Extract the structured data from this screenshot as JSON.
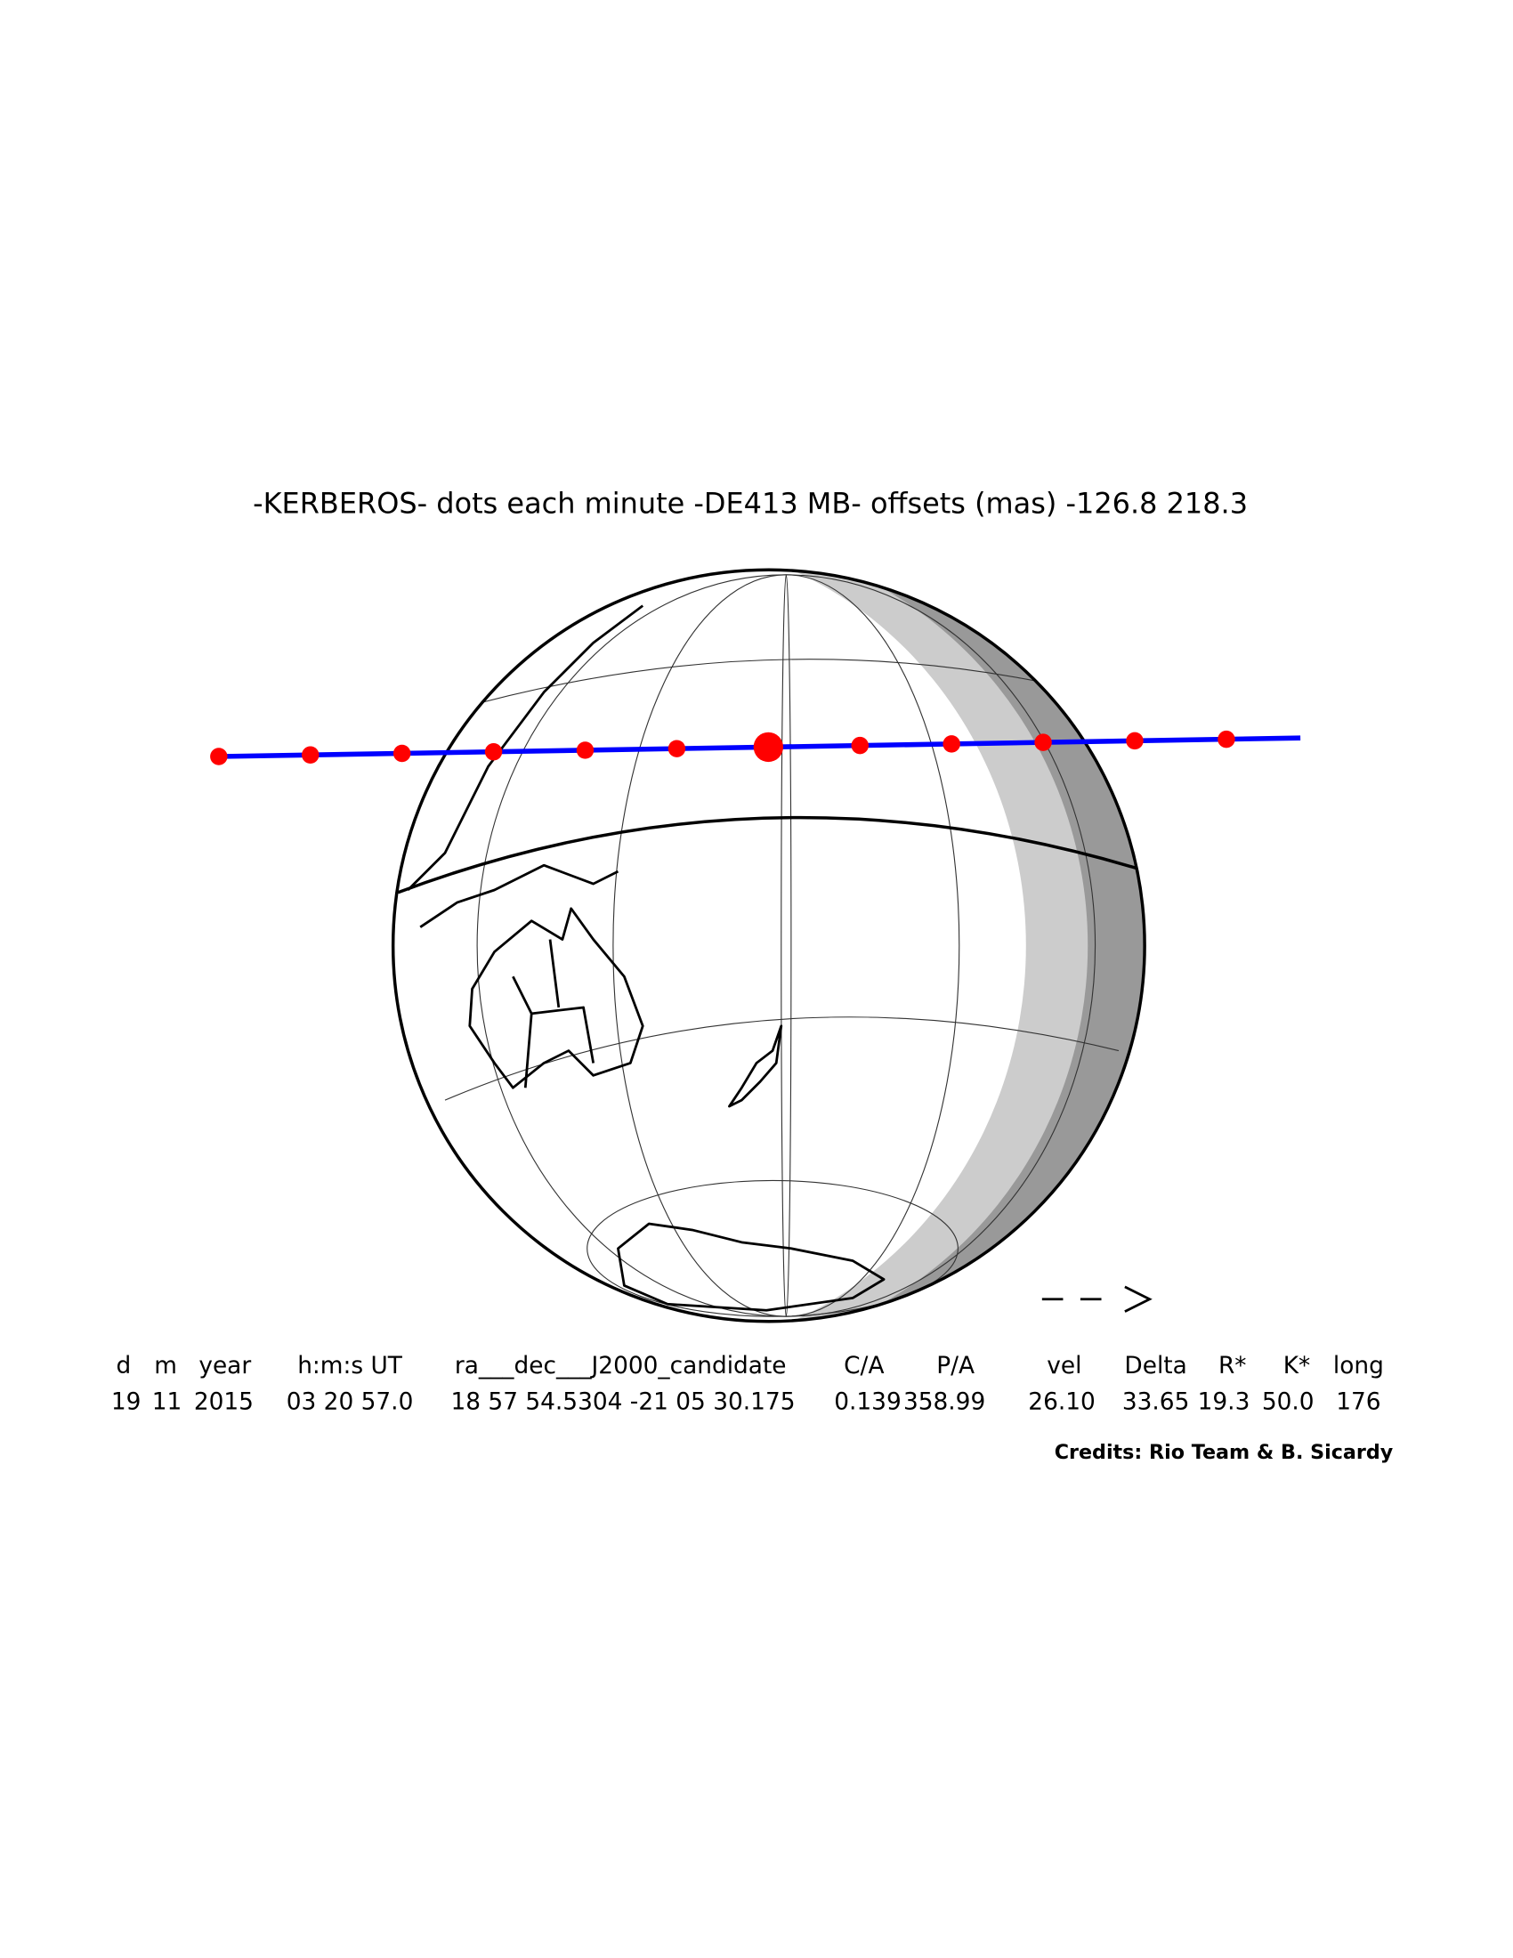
{
  "title": "-KERBEROS- dots each minute -DE413 MB- offsets (mas) -126.8  218.3",
  "table": {
    "header": [
      "d",
      "m",
      "year",
      "h:m:s UT",
      "ra___dec___J2000_candidate",
      "C/A",
      "P/A",
      "vel",
      "Delta",
      "R*",
      "K*",
      "long"
    ],
    "rows": [
      [
        "19",
        "11",
        "2015",
        "03 20 57.0",
        "18 57 54.5304 -21 05 30.175",
        "0.139",
        "358.99",
        "26.10",
        "33.65",
        "19.3",
        "50.0",
        "176"
      ]
    ]
  },
  "credits": "Credits: Rio Team & B. Sicardy"
}
